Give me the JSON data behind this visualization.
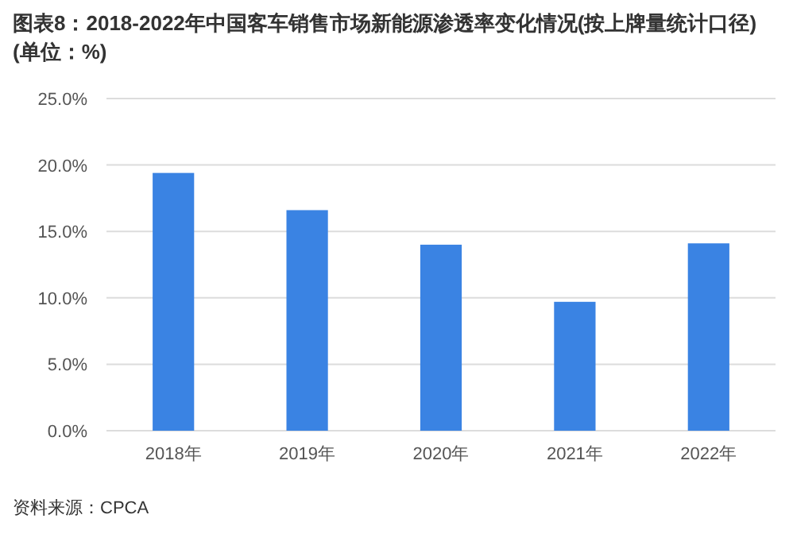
{
  "chart_data": {
    "type": "bar",
    "title": "图表8：2018-2022年中国客车销售市场新能源渗透率变化情况(按上牌量统计口径)(单位：%)",
    "categories": [
      "2018年",
      "2019年",
      "2020年",
      "2021年",
      "2022年"
    ],
    "values": [
      19.4,
      16.6,
      14.0,
      9.7,
      14.1
    ],
    "color": "#3a83e3",
    "ylim": [
      0,
      25
    ],
    "yticks": [
      {
        "value": 0,
        "label": "0.0%"
      },
      {
        "value": 5,
        "label": "5.0%"
      },
      {
        "value": 10,
        "label": "10.0%"
      },
      {
        "value": 15,
        "label": "15.0%"
      },
      {
        "value": 20,
        "label": "20.0%"
      },
      {
        "value": 25,
        "label": "25.0%"
      }
    ],
    "grid": "y",
    "annotations": [
      "资料来源：CPCA"
    ]
  }
}
